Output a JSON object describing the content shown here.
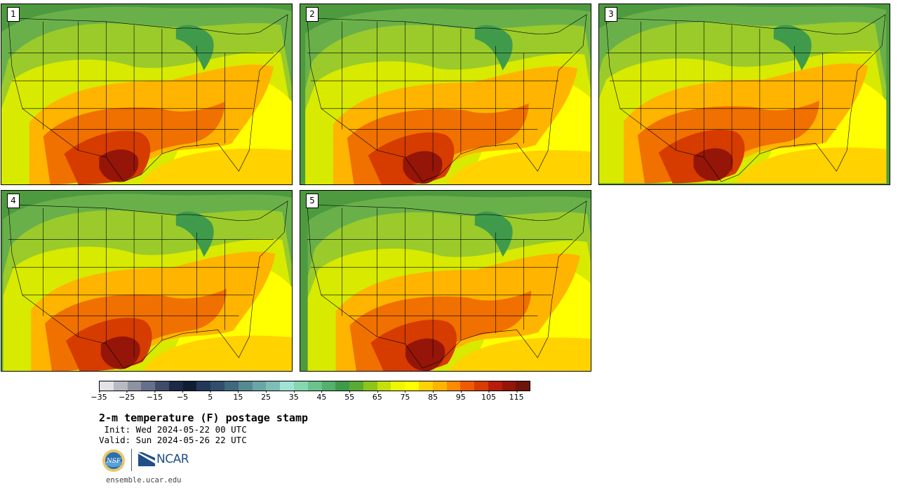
{
  "panels": [
    {
      "label": "1"
    },
    {
      "label": "2"
    },
    {
      "label": "3"
    },
    {
      "label": "4"
    },
    {
      "label": "5"
    }
  ],
  "colorbar": {
    "colors": [
      "#e2e2e8",
      "#b7b9c3",
      "#8e93a1",
      "#66708a",
      "#3f4c69",
      "#1c2a45",
      "#0f1e33",
      "#24395a",
      "#2f4f6c",
      "#41687c",
      "#568a92",
      "#6aa6a6",
      "#7fbdb7",
      "#9fe3d2",
      "#86d6b0",
      "#6ac28c",
      "#54b06d",
      "#3f9b4b",
      "#5aaa33",
      "#8cc41c",
      "#c5df0b",
      "#eef600",
      "#ffff00",
      "#ffd200",
      "#ffb400",
      "#ff8a00",
      "#f05a00",
      "#d63b00",
      "#b81c0a",
      "#951509",
      "#6e140a"
    ],
    "tick_labels": [
      "−35",
      "−25",
      "−15",
      "−5",
      "5",
      "15",
      "25",
      "35",
      "45",
      "55",
      "65",
      "75",
      "85",
      "95",
      "105",
      "115"
    ]
  },
  "title": "2-m temperature (F) postage stamp",
  "init": " Init: Wed 2024-05-22 00 UTC",
  "valid": "Valid: Sun 2024-05-26 22 UTC",
  "logos": {
    "nsf": "NSF",
    "ncar": "NCAR"
  },
  "site": "ensemble.ucar.edu"
}
